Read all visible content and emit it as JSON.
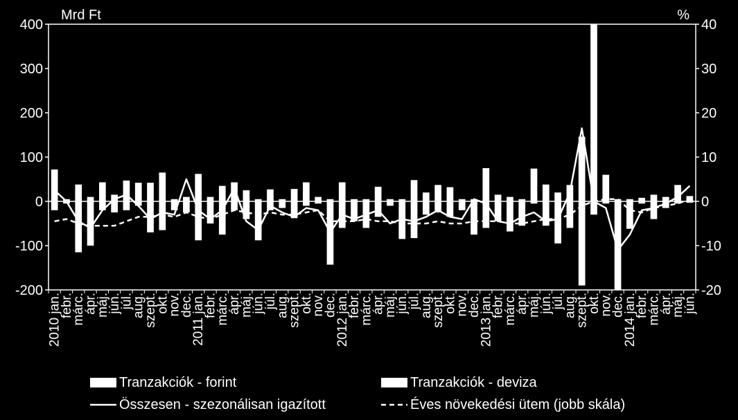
{
  "chart_data": {
    "type": "bar",
    "left_axis_unit": "Mrd Ft",
    "right_axis_unit": "%",
    "left_ylim": [
      -200,
      400
    ],
    "left_yticks": [
      -200,
      -100,
      0,
      100,
      200,
      300,
      400
    ],
    "right_ylim": [
      -20,
      40
    ],
    "right_yticks": [
      -20,
      -10,
      0,
      10,
      20,
      30,
      40
    ],
    "grid": false,
    "legend_position": "bottom",
    "x_labels": [
      "2010 jan.",
      "febr.",
      "márc.",
      "ápr.",
      "máj.",
      "jún.",
      "júl.",
      "aug.",
      "szept.",
      "okt.",
      "nov.",
      "dec.",
      "2011 jan.",
      "febr.",
      "márc.",
      "ápr.",
      "máj.",
      "jún.",
      "júl.",
      "aug.",
      "szept.",
      "okt.",
      "nov.",
      "dec.",
      "2012 jan.",
      "febr.",
      "márc.",
      "ápr.",
      "máj.",
      "jún.",
      "júl.",
      "aug.",
      "szept.",
      "okt.",
      "nov.",
      "dec.",
      "2013 jan.",
      "febr.",
      "márc.",
      "ápr.",
      "máj.",
      "jún.",
      "júl.",
      "aug.",
      "szept.",
      "okt.",
      "nov.",
      "dec.",
      "2014 jan.",
      "febr.",
      "márc.",
      "ápr.",
      "máj.",
      "jún."
    ],
    "series": [
      {
        "name": "Tranzakciók - forint",
        "kind": "bar",
        "axis": "left",
        "color": "#ffffff",
        "values": [
          -20,
          -5,
          -115,
          -100,
          -20,
          -25,
          -20,
          -10,
          -70,
          -65,
          -20,
          -25,
          -88,
          -50,
          -75,
          -20,
          -40,
          -88,
          -20,
          -15,
          -38,
          -10,
          -5,
          -143,
          -60,
          -45,
          -60,
          -35,
          -10,
          -85,
          -83,
          -30,
          -25,
          -35,
          -20,
          -75,
          -60,
          -45,
          -68,
          -55,
          -5,
          -55,
          -95,
          -60,
          -190,
          -30,
          -5,
          -200,
          -62,
          -5,
          -40,
          -15,
          -5,
          -3
        ]
      },
      {
        "name": "Tranzakciók - deviza",
        "kind": "bar",
        "axis": "left",
        "color": "#ffffff",
        "values": [
          72,
          5,
          38,
          10,
          43,
          15,
          47,
          42,
          42,
          65,
          5,
          10,
          62,
          10,
          35,
          43,
          25,
          5,
          27,
          5,
          28,
          43,
          10,
          5,
          43,
          5,
          5,
          33,
          5,
          5,
          48,
          20,
          37,
          32,
          5,
          5,
          75,
          15,
          10,
          5,
          74,
          38,
          20,
          37,
          146,
          400,
          60,
          5,
          5,
          8,
          15,
          10,
          37,
          12
        ]
      },
      {
        "name": "Összesen - szezonálisan igazított",
        "kind": "line",
        "dash": "solid",
        "axis": "left",
        "color": "#ffffff",
        "values": [
          25,
          0,
          -45,
          -60,
          -20,
          5,
          15,
          -10,
          -40,
          -25,
          -30,
          50,
          -20,
          -40,
          -20,
          30,
          -45,
          -65,
          -10,
          -25,
          -35,
          -15,
          -20,
          -70,
          -30,
          -40,
          -30,
          -20,
          -50,
          -40,
          -45,
          -35,
          -20,
          -35,
          -40,
          5,
          -5,
          -45,
          -50,
          -35,
          -25,
          -45,
          -40,
          20,
          165,
          0,
          -15,
          -110,
          -75,
          -20,
          -15,
          -5,
          10,
          35
        ]
      },
      {
        "name": "Éves növekedési ütem (jobb skála)",
        "kind": "line",
        "dash": "dashed",
        "axis": "right",
        "color": "#ffffff",
        "values": [
          -4.5,
          -4.0,
          -5.0,
          -5.5,
          -5.5,
          -5.5,
          -4.5,
          -3.5,
          -3.5,
          -3.0,
          -3.5,
          -2.5,
          -3.5,
          -4.0,
          -3.0,
          -2.0,
          -2.5,
          -3.0,
          -2.5,
          -3.0,
          -3.0,
          -2.5,
          -2.0,
          -4.5,
          -4.5,
          -4.5,
          -4.0,
          -4.5,
          -4.5,
          -5.0,
          -5.0,
          -5.0,
          -4.5,
          -5.0,
          -5.0,
          -4.5,
          -4.5,
          -4.5,
          -5.0,
          -5.0,
          -4.5,
          -4.0,
          -4.0,
          -3.0,
          -1.0,
          0,
          0.5,
          0.5,
          -2.0,
          -2.5,
          -1.5,
          -1.0,
          -0.5,
          0.5
        ]
      }
    ]
  },
  "legend": [
    {
      "label": "Tranzakciók - forint",
      "swatch": "bar"
    },
    {
      "label": "Tranzakciók - deviza",
      "swatch": "bar"
    },
    {
      "label": "Összesen - szezonálisan igazított",
      "swatch": "solid"
    },
    {
      "label": "Éves növekedési ütem (jobb skála)",
      "swatch": "dashed"
    }
  ]
}
